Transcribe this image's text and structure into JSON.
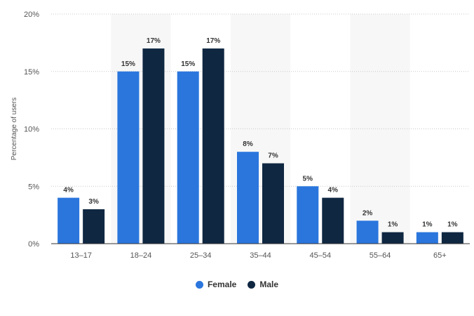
{
  "chart_data": {
    "type": "bar",
    "title": "",
    "xlabel": "",
    "ylabel": "Percentage of users",
    "categories": [
      "13–17",
      "18–24",
      "25–34",
      "35–44",
      "45–54",
      "55–64",
      "65+"
    ],
    "series": [
      {
        "name": "Female",
        "color": "#2a76dd",
        "values": [
          4,
          15,
          15,
          8,
          5,
          2,
          1
        ]
      },
      {
        "name": "Male",
        "color": "#0f2741",
        "values": [
          3,
          17,
          17,
          7,
          4,
          1,
          1
        ]
      }
    ],
    "ylim": [
      0,
      20
    ],
    "yticks": [
      "0%",
      "5%",
      "10%",
      "15%",
      "20%"
    ],
    "data_labels": [
      [
        "4%",
        "15%",
        "15%",
        "8%",
        "5%",
        "2%",
        "1%"
      ],
      [
        "3%",
        "17%",
        "17%",
        "7%",
        "4%",
        "1%",
        "1%"
      ]
    ],
    "grid": true,
    "legend_position": "bottom"
  }
}
